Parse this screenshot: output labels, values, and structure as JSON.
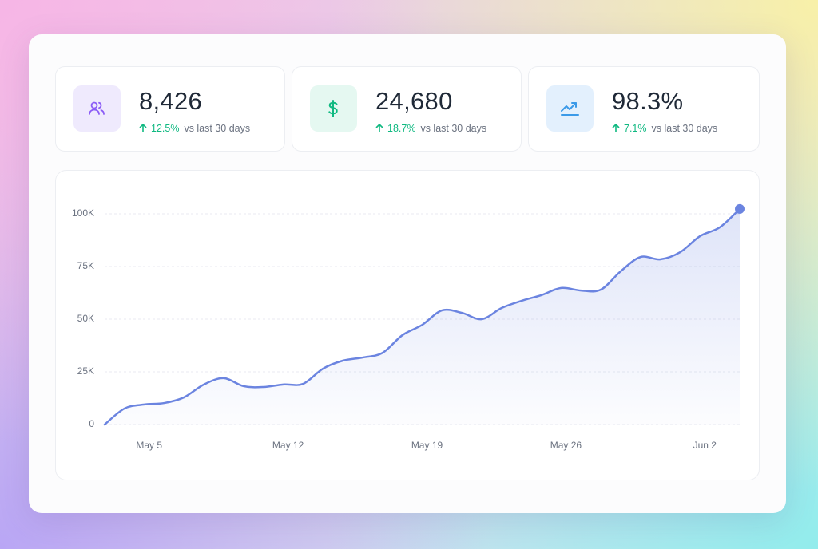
{
  "stats": [
    {
      "value": "8,426",
      "change": "12.5%",
      "note": "vs last 30 days"
    },
    {
      "value": "24,680",
      "change": "18.7%",
      "note": "vs last 30 days"
    },
    {
      "value": "98.3%",
      "change": "7.1%",
      "note": "vs last 30 days"
    }
  ],
  "chart_data": {
    "type": "line",
    "categories": [
      null,
      null,
      "May 5",
      null,
      null,
      null,
      null,
      null,
      null,
      "May 12",
      null,
      null,
      null,
      null,
      null,
      null,
      "May 19",
      null,
      null,
      null,
      null,
      null,
      null,
      "May 26",
      null,
      null,
      null,
      null,
      null,
      null,
      "Jun 2",
      null,
      null
    ],
    "series": [
      {
        "color": "#6b84e0",
        "values": [
          0,
          7600,
          9500,
          10200,
          12900,
          19000,
          22000,
          18200,
          17800,
          19000,
          19300,
          26500,
          30300,
          31800,
          34000,
          42400,
          47300,
          54200,
          53000,
          50000,
          55300,
          58700,
          61400,
          64800,
          63600,
          64000,
          72700,
          79500,
          78400,
          81800,
          89400,
          93600,
          102300
        ]
      }
    ],
    "ylim": [
      0,
      100000
    ],
    "yticks": [
      0,
      {
        "value": 25000,
        "label": "25K"
      },
      {
        "value": 50000,
        "label": "50K"
      },
      {
        "value": 75000,
        "label": "75K"
      },
      {
        "value": 100000,
        "label": "100K"
      }
    ],
    "grid": true
  }
}
